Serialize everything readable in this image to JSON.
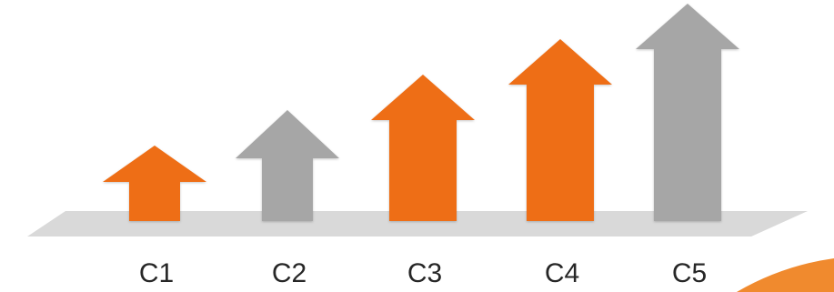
{
  "colors": {
    "orange": "#EE6E17",
    "gray": "#A6A6A6",
    "platform": "#D9D9D9",
    "corner_accent": "#F08A2E"
  },
  "icons": {
    "arrow": "up-arrow-icon",
    "platform": "platform-shape"
  },
  "steps": [
    {
      "label": "C1",
      "level": 1,
      "color": "orange"
    },
    {
      "label": "C2",
      "level": 2,
      "color": "gray"
    },
    {
      "label": "C3",
      "level": 3,
      "color": "orange"
    },
    {
      "label": "C4",
      "level": 4,
      "color": "orange"
    },
    {
      "label": "C5",
      "level": 5,
      "color": "gray"
    }
  ]
}
